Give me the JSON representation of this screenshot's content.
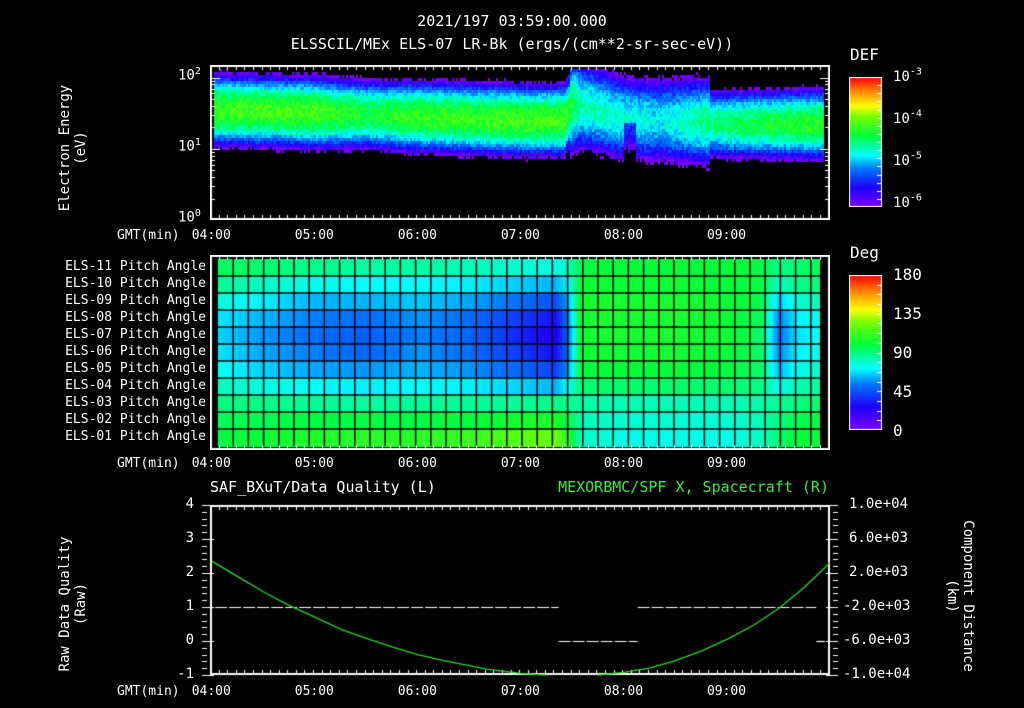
{
  "header": {
    "datetime": "2021/197 03:59:00.000",
    "title": "ELSSCIL/MEx ELS-07 LR-Bk  (ergs/(cm**2-sr-sec-eV))"
  },
  "colors": {
    "background": "#000000",
    "axes": "#ffffff",
    "spacecraft_line": "#22dd22",
    "quality_line": "#ffffff"
  },
  "time_axis": {
    "label": "GMT(min)",
    "ticks": [
      "04:00",
      "05:00",
      "06:00",
      "07:00",
      "08:00",
      "09:00"
    ],
    "start_min": 239,
    "end_min": 600
  },
  "panel1": {
    "ylabel_line1": "Electron Energy",
    "ylabel_line2": "(eV)",
    "yticks": [
      {
        "base": "10",
        "exp": "2"
      },
      {
        "base": "10",
        "exp": "1"
      },
      {
        "base": "10",
        "exp": "0"
      }
    ],
    "colorbar": {
      "label": "DEF",
      "ticks": [
        {
          "base": "10",
          "exp": "-3"
        },
        {
          "base": "10",
          "exp": "-4"
        },
        {
          "base": "10",
          "exp": "-5"
        },
        {
          "base": "10",
          "exp": "-6"
        }
      ]
    }
  },
  "panel2": {
    "rows": [
      "ELS-11 Pitch Angle",
      "ELS-10 Pitch Angle",
      "ELS-09 Pitch Angle",
      "ELS-08 Pitch Angle",
      "ELS-07 Pitch Angle",
      "ELS-06 Pitch Angle",
      "ELS-05 Pitch Angle",
      "ELS-04 Pitch Angle",
      "ELS-03 Pitch Angle",
      "ELS-02 Pitch Angle",
      "ELS-01 Pitch Angle"
    ],
    "colorbar": {
      "label": "Deg",
      "ticks": [
        "180",
        "135",
        "90",
        "45",
        "0"
      ]
    }
  },
  "panel3": {
    "left_title": "SAF_BXuT/Data Quality (L)",
    "right_title": "MEXORBMC/SPF X, Spacecraft (R)",
    "ylabel_left_line1": "Raw Data Quality",
    "ylabel_left_line2": "(Raw)",
    "yticks_left": [
      "4",
      "3",
      "2",
      "1",
      "0",
      "-1"
    ],
    "ylabel_right_line1": "Component Distance",
    "ylabel_right_line2": "(km)",
    "yticks_right": [
      "1.0e+04",
      "6.0e+03",
      "2.0e+03",
      "-2.0e+03",
      "-6.0e+03",
      "-1.0e+04"
    ]
  },
  "chart_data": [
    {
      "type": "heatmap",
      "title": "ELSSCIL/MEx ELS-07 LR-Bk (ergs/(cm**2-sr-sec-eV))",
      "xlabel": "GMT(min)",
      "ylabel": "Electron Energy (eV)",
      "x_ticks": [
        "04:00",
        "05:00",
        "06:00",
        "07:00",
        "08:00",
        "09:00"
      ],
      "y_scale": "log",
      "ylim": [
        1,
        150
      ],
      "colorbar": {
        "label": "DEF",
        "scale": "log",
        "range": [
          1e-06,
          0.001
        ]
      },
      "description": "Dense band centered ~20-50 eV with DEF ~1e-4 (green) from 04:00-07:25; abrupt change at ~07:27 to broader, weaker (cyan ~3e-5) band, dropout near 08:05; green band returns ~20-30 eV after 09:00",
      "band_center_eV": [
        [
          240,
          35
        ],
        [
          300,
          32
        ],
        [
          330,
          30
        ],
        [
          360,
          28
        ],
        [
          420,
          25
        ],
        [
          445,
          25
        ],
        [
          450,
          40
        ],
        [
          480,
          25
        ],
        [
          540,
          22
        ],
        [
          590,
          22
        ]
      ],
      "band_peak_log10_def": [
        [
          240,
          -4.1
        ],
        [
          300,
          -4.1
        ],
        [
          330,
          -4.3
        ],
        [
          360,
          -4.15
        ],
        [
          420,
          -4.1
        ],
        [
          445,
          -4.1
        ],
        [
          455,
          -4.6
        ],
        [
          480,
          -4.7
        ],
        [
          500,
          -4.8
        ],
        [
          540,
          -4.4
        ],
        [
          590,
          -4.2
        ]
      ]
    },
    {
      "type": "heatmap",
      "title": "Pitch Angle",
      "xlabel": "GMT(min)",
      "y_categories": [
        "ELS-11",
        "ELS-10",
        "ELS-09",
        "ELS-08",
        "ELS-07",
        "ELS-06",
        "ELS-05",
        "ELS-04",
        "ELS-03",
        "ELS-02",
        "ELS-01"
      ],
      "colorbar": {
        "label": "Deg",
        "range": [
          0,
          180
        ],
        "ticks": [
          0,
          45,
          90,
          135,
          180
        ]
      },
      "x_minutes": [
        240,
        270,
        300,
        330,
        360,
        390,
        420,
        440,
        447,
        455,
        480,
        510,
        540,
        560,
        570,
        580,
        595
      ],
      "values_deg": [
        [
          95,
          92,
          88,
          85,
          85,
          82,
          78,
          75,
          80,
          98,
          100,
          100,
          100,
          98,
          88,
          92,
          95
        ],
        [
          88,
          80,
          75,
          72,
          72,
          70,
          65,
          62,
          70,
          102,
          102,
          102,
          100,
          97,
          80,
          88,
          90
        ],
        [
          78,
          70,
          62,
          62,
          65,
          60,
          52,
          45,
          60,
          104,
          104,
          104,
          102,
          96,
          65,
          78,
          82
        ],
        [
          70,
          62,
          55,
          52,
          58,
          52,
          40,
          30,
          55,
          104,
          104,
          104,
          102,
          94,
          55,
          70,
          76
        ],
        [
          68,
          58,
          52,
          48,
          55,
          50,
          35,
          25,
          50,
          103,
          104,
          104,
          102,
          93,
          52,
          68,
          74
        ],
        [
          70,
          60,
          55,
          50,
          58,
          52,
          40,
          30,
          52,
          102,
          103,
          103,
          101,
          93,
          55,
          70,
          76
        ],
        [
          74,
          66,
          60,
          58,
          62,
          58,
          50,
          42,
          58,
          100,
          100,
          100,
          99,
          92,
          62,
          74,
          80
        ],
        [
          82,
          76,
          72,
          70,
          72,
          70,
          66,
          62,
          72,
          92,
          92,
          92,
          92,
          88,
          74,
          82,
          86
        ],
        [
          90,
          88,
          86,
          85,
          86,
          86,
          86,
          88,
          88,
          84,
          82,
          82,
          82,
          84,
          86,
          90,
          92
        ],
        [
          95,
          96,
          98,
          98,
          98,
          100,
          104,
          106,
          100,
          82,
          78,
          78,
          78,
          82,
          90,
          96,
          98
        ],
        [
          98,
          102,
          106,
          108,
          108,
          112,
          118,
          122,
          110,
          80,
          75,
          75,
          75,
          80,
          92,
          100,
          102
        ]
      ]
    },
    {
      "type": "line",
      "title": "SAF_BXuT/Data Quality (L) / MEXORBMC/SPF X, Spacecraft (R)",
      "xlabel": "GMT(min)",
      "series": [
        {
          "name": "SAF_BXuT/Data Quality (L)",
          "axis": "left",
          "ylim": [
            -1,
            4
          ],
          "style": "dashed-white",
          "segments": [
            {
              "x": [
                242,
                442
              ],
              "y": 1
            },
            {
              "x": [
                442,
                488
              ],
              "y": 0
            },
            {
              "x": [
                488,
                592
              ],
              "y": 1
            },
            {
              "x": [
                592,
                597
              ],
              "y": 0
            }
          ]
        },
        {
          "name": "MEXORBMC/SPF X, Spacecraft (R)",
          "axis": "right",
          "ylim": [
            -10000,
            10000
          ],
          "color": "#22dd22",
          "x": [
            240,
            255,
            270,
            285,
            300,
            315,
            330,
            345,
            360,
            375,
            390,
            400,
            420,
            435,
            450,
            465,
            480,
            495,
            510,
            525,
            540,
            555,
            570,
            585,
            600
          ],
          "y": [
            3400,
            1600,
            -200,
            -1800,
            -3200,
            -4600,
            -5700,
            -6700,
            -7600,
            -8300,
            -8900,
            -9300,
            -9800,
            -10000,
            -10200,
            -10000,
            -9700,
            -9200,
            -8300,
            -7200,
            -5800,
            -4200,
            -2200,
            300,
            3200
          ]
        }
      ]
    }
  ]
}
